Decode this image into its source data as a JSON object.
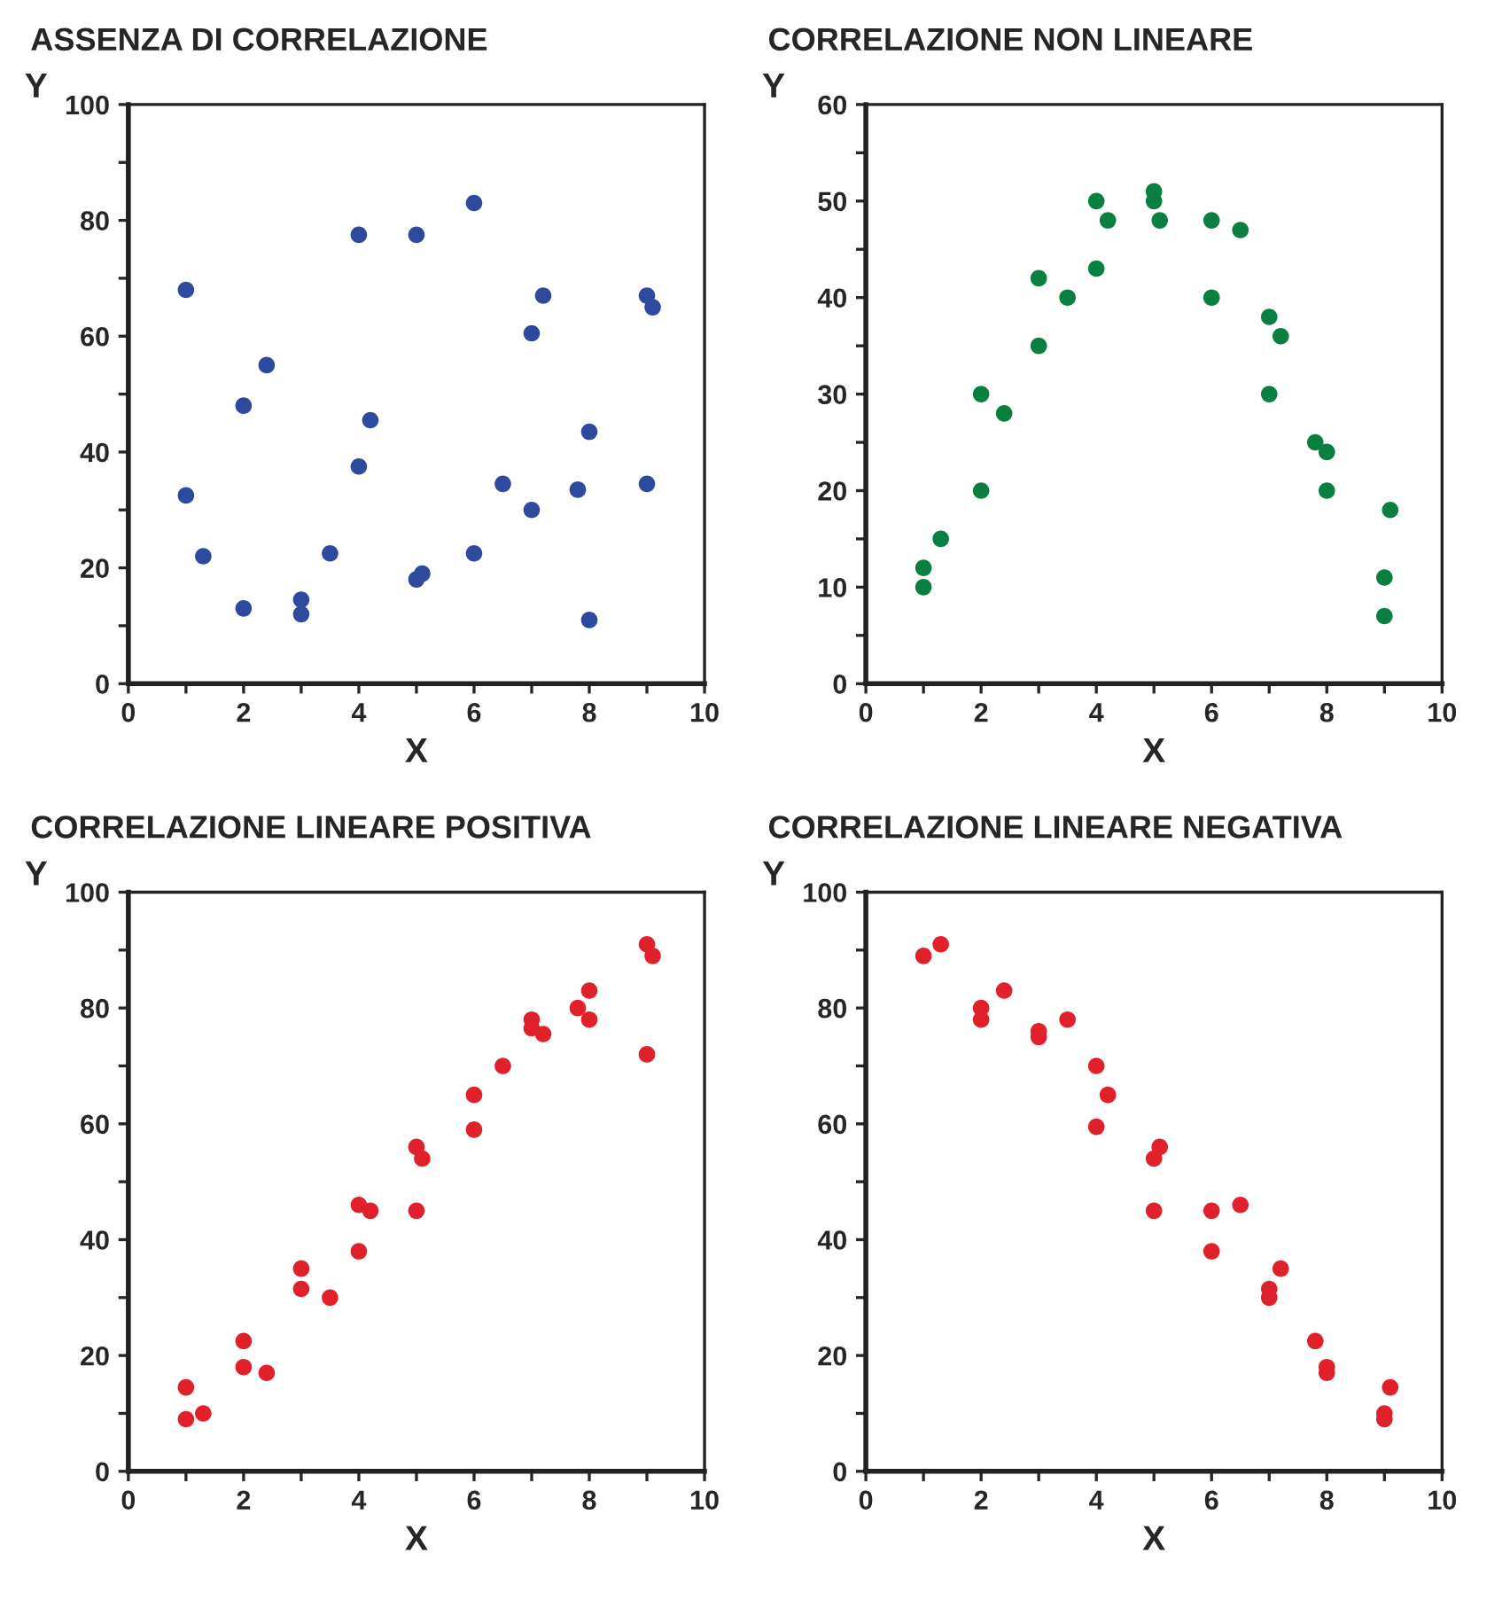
{
  "chart_data": [
    {
      "type": "scatter",
      "title": "ASSENZA DI CORRELAZIONE",
      "xlabel": "X",
      "ylabel": "Y",
      "marker": "circle",
      "grid": false,
      "x": [
        1,
        1,
        1.3,
        2,
        2,
        2.4,
        3,
        3,
        3.5,
        4,
        4,
        4.2,
        5,
        5,
        5.1,
        6,
        6,
        6.5,
        7,
        7,
        7.2,
        7.8,
        8,
        8,
        9,
        9.1,
        9
      ],
      "series": [
        {
          "color": "#2e4a9e",
          "values": [
            68,
            32.5,
            22,
            48,
            13,
            55,
            14.5,
            12,
            22.5,
            77.5,
            37.5,
            45.5,
            77.5,
            18,
            19,
            83,
            22.5,
            34.5,
            60.5,
            30,
            67,
            33.5,
            43.5,
            11,
            67,
            65,
            34.5
          ]
        }
      ],
      "xlim": [
        0,
        10
      ],
      "ylim": [
        0,
        100
      ],
      "xticks": [
        0,
        {
          "value": 1,
          "label": null
        },
        2,
        {
          "value": 3,
          "label": null
        },
        4,
        {
          "value": 5,
          "label": null
        },
        6,
        {
          "value": 7,
          "label": null
        },
        8,
        {
          "value": 9,
          "label": null
        },
        10
      ],
      "yticks": [
        0,
        {
          "value": 10,
          "label": null
        },
        20,
        {
          "value": 30,
          "label": null
        },
        40,
        {
          "value": 50,
          "label": null
        },
        60,
        {
          "value": 70,
          "label": null
        },
        80,
        {
          "value": 90,
          "label": null
        },
        100
      ]
    },
    {
      "type": "scatter",
      "title": "CORRELAZIONE NON LINEARE",
      "xlabel": "X",
      "ylabel": "Y",
      "marker": "circle",
      "grid": false,
      "x": [
        1,
        1,
        1.3,
        2,
        2,
        2.4,
        3,
        3,
        3.5,
        4,
        4,
        4.2,
        5,
        5,
        5.1,
        6,
        6,
        6.5,
        7,
        7,
        7.2,
        7.8,
        8,
        8,
        9,
        9,
        9.1
      ],
      "series": [
        {
          "color": "#0a8040",
          "values": [
            12,
            10,
            15,
            30,
            20,
            28,
            42,
            35,
            40,
            50,
            43,
            48,
            51,
            50,
            48,
            48,
            40,
            47,
            38,
            30,
            36,
            25,
            24,
            20,
            11,
            7,
            18
          ]
        }
      ],
      "xlim": [
        0,
        10
      ],
      "ylim": [
        0,
        60
      ],
      "xticks": [
        0,
        {
          "value": 1,
          "label": null
        },
        2,
        {
          "value": 3,
          "label": null
        },
        4,
        {
          "value": 5,
          "label": null
        },
        6,
        {
          "value": 7,
          "label": null
        },
        8,
        {
          "value": 9,
          "label": null
        },
        10
      ],
      "yticks": [
        0,
        {
          "value": 5,
          "label": null
        },
        10,
        {
          "value": 15,
          "label": null
        },
        20,
        {
          "value": 25,
          "label": null
        },
        30,
        {
          "value": 35,
          "label": null
        },
        40,
        {
          "value": 45,
          "label": null
        },
        50,
        {
          "value": 55,
          "label": null
        },
        60
      ]
    },
    {
      "type": "scatter",
      "title": "CORRELAZIONE LINEARE POSITIVA",
      "xlabel": "X",
      "ylabel": "Y",
      "marker": "circle",
      "grid": false,
      "x": [
        1,
        1,
        1.3,
        2,
        2,
        2.4,
        3,
        3,
        3.5,
        4,
        4,
        4.2,
        5,
        5,
        5.1,
        6,
        6,
        6.5,
        7,
        7,
        7.2,
        7.8,
        8,
        8,
        9,
        9.1,
        9
      ],
      "series": [
        {
          "color": "#e0202a",
          "values": [
            14.5,
            9,
            10,
            22.5,
            18,
            17,
            35,
            31.5,
            30,
            46,
            38,
            45,
            56,
            45,
            54,
            65,
            59,
            70,
            78,
            76.5,
            75.5,
            80,
            83,
            78,
            91,
            89,
            72
          ]
        }
      ],
      "xlim": [
        0,
        10
      ],
      "ylim": [
        0,
        100
      ],
      "xticks": [
        0,
        {
          "value": 1,
          "label": null
        },
        2,
        {
          "value": 3,
          "label": null
        },
        4,
        {
          "value": 5,
          "label": null
        },
        6,
        {
          "value": 7,
          "label": null
        },
        8,
        {
          "value": 9,
          "label": null
        },
        10
      ],
      "yticks": [
        0,
        {
          "value": 10,
          "label": null
        },
        20,
        {
          "value": 30,
          "label": null
        },
        40,
        {
          "value": 50,
          "label": null
        },
        60,
        {
          "value": 70,
          "label": null
        },
        80,
        {
          "value": 90,
          "label": null
        },
        100
      ]
    },
    {
      "type": "scatter",
      "title": "CORRELAZIONE LINEARE NEGATIVA",
      "xlabel": "X",
      "ylabel": "Y",
      "marker": "circle",
      "grid": false,
      "x": [
        1,
        1.3,
        2,
        2,
        2.4,
        3,
        3,
        3.5,
        4,
        4,
        4.2,
        5,
        5,
        5.1,
        6,
        6,
        6.5,
        7,
        7,
        7.2,
        7.8,
        8,
        8,
        9,
        9,
        9.1
      ],
      "series": [
        {
          "color": "#e0202a",
          "values": [
            89,
            91,
            80,
            78,
            83,
            76,
            75,
            78,
            70,
            59.5,
            65,
            54,
            45,
            56,
            45,
            38,
            46,
            31.5,
            30,
            35,
            22.5,
            18,
            17,
            10,
            9,
            14.5
          ]
        }
      ],
      "xlim": [
        0,
        10
      ],
      "ylim": [
        0,
        100
      ],
      "xticks": [
        0,
        {
          "value": 1,
          "label": null
        },
        2,
        {
          "value": 3,
          "label": null
        },
        4,
        {
          "value": 5,
          "label": null
        },
        6,
        {
          "value": 7,
          "label": null
        },
        8,
        {
          "value": 9,
          "label": null
        },
        10
      ],
      "yticks": [
        0,
        {
          "value": 10,
          "label": null
        },
        20,
        {
          "value": 30,
          "label": null
        },
        40,
        {
          "value": 50,
          "label": null
        },
        60,
        {
          "value": 70,
          "label": null
        },
        80,
        {
          "value": 90,
          "label": null
        },
        100
      ]
    }
  ]
}
